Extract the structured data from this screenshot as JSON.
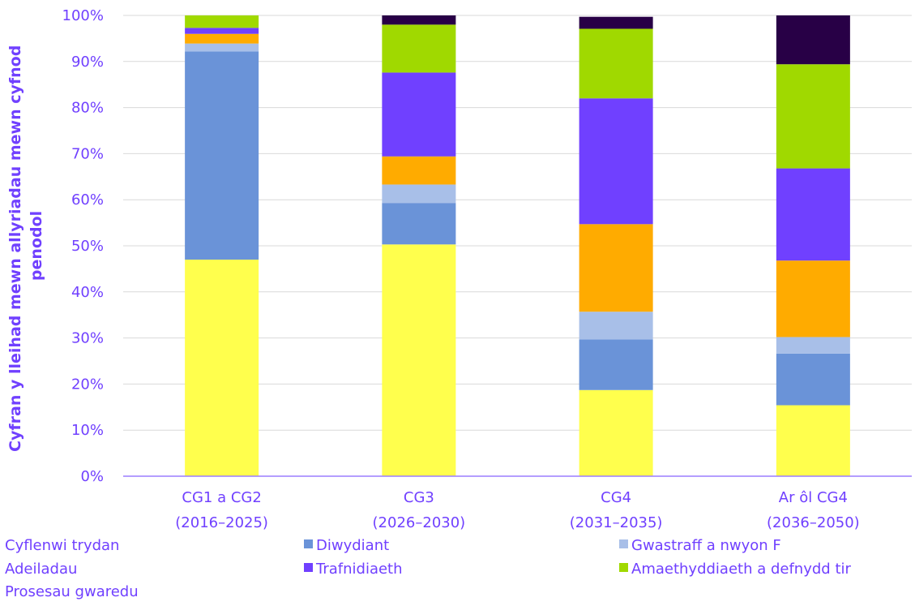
{
  "chart_data": {
    "type": "bar",
    "stacked": true,
    "ylabel_lines": [
      "Cyfran y lleihad mewn allyriadau mewn cyfnod",
      "penodol"
    ],
    "xlabel": "",
    "ylim": [
      0,
      100
    ],
    "y_ticks": [
      "0%",
      "10%",
      "20%",
      "30%",
      "40%",
      "50%",
      "60%",
      "70%",
      "80%",
      "90%",
      "100%"
    ],
    "grid": true,
    "legend_position": "bottom",
    "categories": [
      [
        "CG1 a CG2",
        "(2016–2025)"
      ],
      [
        "CG3",
        "(2026–2030)"
      ],
      [
        "CG4",
        "(2031–2035)"
      ],
      [
        "Ar ôl CG4",
        "(2036–2050)"
      ]
    ],
    "series": [
      {
        "name": "Cyflenwi trydan",
        "color": "#FFFF4D",
        "values": [
          47,
          50.3,
          18.7,
          15.4
        ]
      },
      {
        "name": "Diwydiant",
        "color": "#6A93D8",
        "values": [
          45.2,
          9,
          11,
          11.2
        ]
      },
      {
        "name": "Gwastraff a nwyon F",
        "color": "#A8BFE8",
        "values": [
          1.7,
          4,
          6,
          3.6
        ]
      },
      {
        "name": "Adeiladau",
        "color": "#FFAB00",
        "values": [
          2.1,
          6.1,
          19,
          16.6
        ]
      },
      {
        "name": "Trafnidiaeth",
        "color": "#7040FF",
        "values": [
          1.3,
          18.2,
          27.3,
          20
        ]
      },
      {
        "name": "Amaethyddiaeth a defnydd tir",
        "color": "#A0D900",
        "values": [
          2.7,
          10.4,
          15.1,
          22.6
        ]
      },
      {
        "name": "Prosesau gwaredu",
        "color": "#280046",
        "values": [
          0,
          2,
          2.6,
          10.6
        ]
      }
    ],
    "legend_rows": [
      [
        "Cyflenwi trydan",
        "Diwydiant",
        "Gwastraff a nwyon F"
      ],
      [
        "Adeiladau",
        "Trafnidiaeth",
        "Amaethyddiaeth a defnydd tir"
      ],
      [
        "Prosesau gwaredu"
      ]
    ],
    "colors": {
      "axis_text": "#7040FF",
      "gridline": "#D9D9D9",
      "axis_line": "#9B7FFF"
    }
  }
}
